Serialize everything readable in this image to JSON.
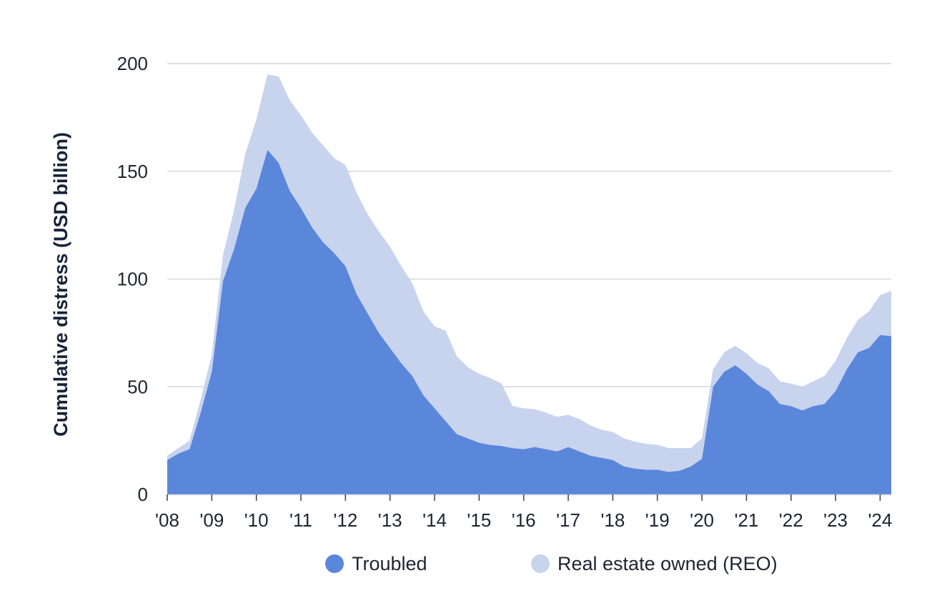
{
  "chart_data": {
    "type": "area",
    "stacked": true,
    "title": "",
    "xlabel": "",
    "ylabel": "Cumulative distress (USD billion)",
    "ylim": [
      0,
      200
    ],
    "yticks": [
      0,
      50,
      100,
      150,
      200
    ],
    "grid": true,
    "legend_position": "bottom-center",
    "x_start": 2008.0,
    "x_step": 0.25,
    "xlim": [
      2008.0,
      2024.25
    ],
    "xtick_values": [
      2008,
      2009,
      2010,
      2011,
      2012,
      2013,
      2014,
      2015,
      2016,
      2017,
      2018,
      2019,
      2020,
      2021,
      2022,
      2023,
      2024
    ],
    "xtick_labels": [
      "'08",
      "'09",
      "'10",
      "'11",
      "'12",
      "'13",
      "'14",
      "'15",
      "'16",
      "'17",
      "'18",
      "'19",
      "'20",
      "'21",
      "'22",
      "'23",
      "'24"
    ],
    "series": [
      {
        "name": "Troubled",
        "color": "#5b87db",
        "values": [
          16,
          19,
          21,
          38,
          57,
          99,
          114,
          133,
          142,
          160,
          154,
          141,
          133,
          124,
          117,
          112,
          106,
          93,
          84,
          75,
          68,
          61,
          55,
          46,
          40,
          34,
          28,
          26,
          24,
          23,
          22.5,
          21.5,
          21,
          22,
          21,
          20,
          22,
          20,
          18,
          17,
          16,
          13,
          12,
          11.5,
          11.5,
          10.5,
          11,
          13,
          16.5,
          50,
          57,
          60,
          56,
          51,
          48,
          42,
          41,
          39,
          41,
          42,
          48,
          58,
          66,
          68,
          74,
          73.5
        ]
      },
      {
        "name": "Real estate owned (REO)",
        "color": "#c8d3ee",
        "values": [
          2,
          2.5,
          4,
          6,
          8,
          12,
          18,
          25,
          32,
          35,
          40,
          42,
          43,
          44,
          45,
          44,
          47,
          47,
          46,
          47,
          47,
          45,
          43,
          39,
          38,
          42,
          36,
          33,
          32,
          31,
          29,
          19.5,
          19,
          17.5,
          17,
          16,
          15,
          15,
          14,
          13,
          13,
          13,
          12.5,
          12,
          11.5,
          11,
          10.5,
          8.5,
          9.5,
          8,
          9,
          9,
          9.5,
          10,
          10.5,
          10.5,
          10.5,
          11,
          11.5,
          13,
          14,
          14.5,
          15,
          17,
          18.5,
          21
        ]
      }
    ]
  }
}
